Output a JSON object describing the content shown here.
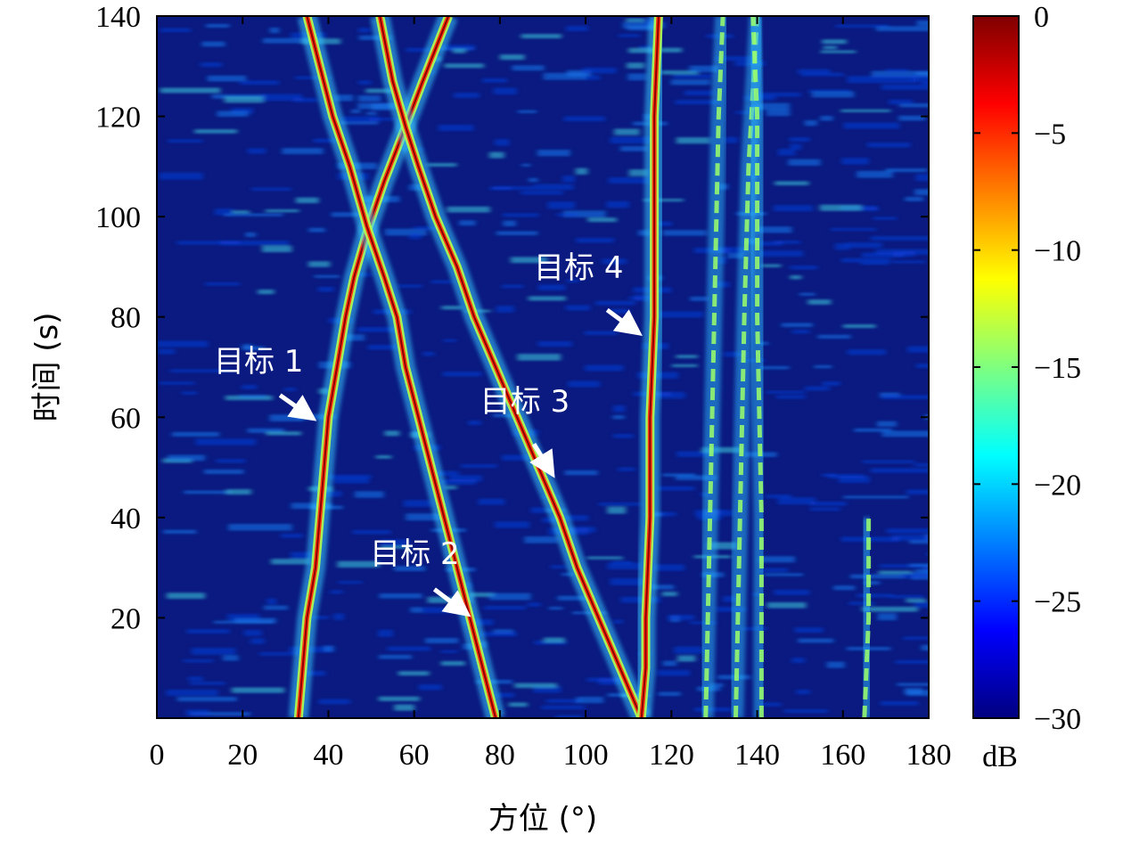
{
  "chart_data": {
    "type": "heatmap",
    "title": "",
    "xlabel": "方位 (°)",
    "ylabel": "时间 (s)",
    "xlim": [
      0,
      180
    ],
    "ylim": [
      0,
      140
    ],
    "x_ticks": [
      "0",
      "20",
      "40",
      "60",
      "80",
      "100",
      "120",
      "140",
      "160",
      "180"
    ],
    "y_ticks": [
      "20",
      "40",
      "60",
      "80",
      "100",
      "120",
      "140"
    ],
    "colorbar": {
      "label": "dB",
      "range": [
        -30,
        0
      ],
      "ticks": [
        "0",
        "−5",
        "−10",
        "−15",
        "−20",
        "−25",
        "−30"
      ],
      "colormap": [
        "#00007f",
        "#0000ff",
        "#007fff",
        "#00ffff",
        "#7fff7f",
        "#ffff00",
        "#ff7f00",
        "#ff0000",
        "#7f0000"
      ]
    },
    "background_color": "#0a1a80",
    "series": [
      {
        "name": "目标 1",
        "points": [
          [
            33,
            0
          ],
          [
            34,
            10
          ],
          [
            35,
            20
          ],
          [
            37,
            30
          ],
          [
            38,
            40
          ],
          [
            39,
            50
          ],
          [
            40,
            60
          ],
          [
            42,
            70
          ],
          [
            44,
            80
          ],
          [
            46,
            88
          ],
          [
            49,
            97
          ],
          [
            53,
            107
          ],
          [
            58,
            118
          ],
          [
            62,
            127
          ],
          [
            68,
            140
          ]
        ]
      },
      {
        "name": "目标 2",
        "points": [
          [
            79,
            0
          ],
          [
            76,
            10
          ],
          [
            73,
            20
          ],
          [
            70,
            30
          ],
          [
            67,
            40
          ],
          [
            64,
            50
          ],
          [
            61,
            60
          ],
          [
            58,
            70
          ],
          [
            56,
            80
          ],
          [
            53,
            88
          ],
          [
            49,
            98
          ],
          [
            45,
            110
          ],
          [
            41,
            120
          ],
          [
            38,
            130
          ],
          [
            35,
            140
          ]
        ]
      },
      {
        "name": "目标 3",
        "points": [
          [
            113,
            0
          ],
          [
            108,
            10
          ],
          [
            103,
            20
          ],
          [
            98,
            30
          ],
          [
            94,
            40
          ],
          [
            89,
            50
          ],
          [
            84,
            60
          ],
          [
            79,
            70
          ],
          [
            74,
            80
          ],
          [
            70,
            90
          ],
          [
            65,
            100
          ],
          [
            61,
            110
          ],
          [
            58,
            118
          ],
          [
            55,
            127
          ],
          [
            52,
            140
          ]
        ]
      },
      {
        "name": "目标 4",
        "points": [
          [
            113,
            0
          ],
          [
            114,
            10
          ],
          [
            114,
            20
          ],
          [
            115,
            40
          ],
          [
            115,
            60
          ],
          [
            116,
            80
          ],
          [
            116,
            100
          ],
          [
            116,
            120
          ],
          [
            117,
            140
          ]
        ]
      }
    ],
    "background_bands": [
      {
        "points": [
          [
            128,
            0
          ],
          [
            129,
            40
          ],
          [
            130,
            80
          ],
          [
            131,
            120
          ],
          [
            132,
            140
          ]
        ]
      },
      {
        "points": [
          [
            135,
            0
          ],
          [
            136,
            40
          ],
          [
            137,
            80
          ],
          [
            138,
            110
          ],
          [
            140,
            140
          ]
        ]
      },
      {
        "points": [
          [
            141,
            0
          ],
          [
            141,
            40
          ],
          [
            140,
            80
          ],
          [
            140,
            120
          ],
          [
            139,
            140
          ]
        ]
      },
      {
        "points": [
          [
            165,
            0
          ],
          [
            166,
            20
          ],
          [
            166,
            40
          ]
        ]
      }
    ],
    "annotations": [
      {
        "text": "目标 1",
        "arrow_to": [
          36,
          60
        ]
      },
      {
        "text": "目标 2",
        "arrow_to": [
          72,
          21
        ]
      },
      {
        "text": "目标 3",
        "arrow_to": [
          92,
          49
        ]
      },
      {
        "text": "目标 4",
        "arrow_to": [
          112,
          77
        ]
      }
    ]
  }
}
